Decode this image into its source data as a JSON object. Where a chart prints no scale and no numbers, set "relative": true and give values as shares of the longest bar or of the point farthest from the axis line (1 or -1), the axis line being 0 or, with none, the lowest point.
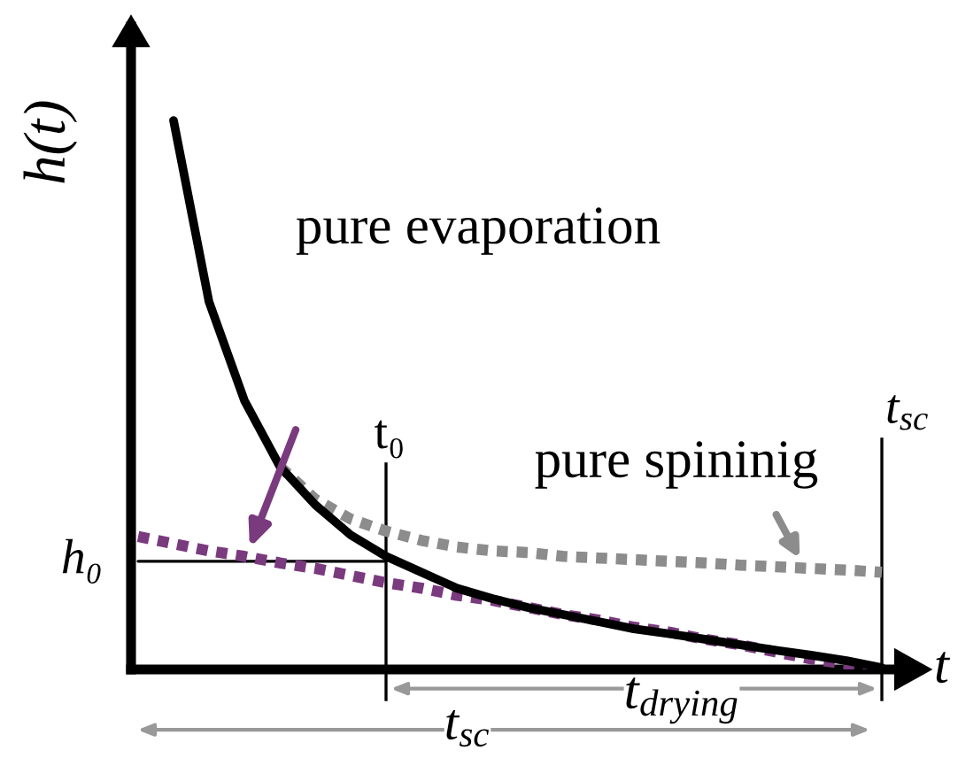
{
  "chart_data": {
    "type": "line",
    "relative": true,
    "xlabel": "t",
    "ylabel": "h(t)",
    "categories": [
      null,
      null,
      null,
      null,
      null,
      null,
      null,
      null,
      null,
      null,
      null,
      null,
      null,
      null,
      null,
      null,
      null,
      null,
      null,
      null,
      null,
      null
    ],
    "series": [
      {
        "color": "#000000",
        "line_style": "solid",
        "values": [
          null,
          1.0,
          0.67,
          0.49,
          0.37,
          0.3,
          0.245,
          0.206,
          0.177,
          0.148,
          0.129,
          0.113,
          0.1,
          0.087,
          0.074,
          0.065,
          0.055,
          0.045,
          0.035,
          0.026,
          0.016,
          0.003
        ]
      },
      {
        "color": "#8c8c8c",
        "line_style": "dotted",
        "values": [
          null,
          null,
          null,
          null,
          0.37,
          0.31,
          0.274,
          0.252,
          0.235,
          0.223,
          0.216,
          0.213,
          0.206,
          0.203,
          0.2,
          0.197,
          0.194,
          0.19,
          0.187,
          0.184,
          0.181,
          0.177
        ]
      },
      {
        "color": "#7a3a7e",
        "line_style": "dotted",
        "values": [
          0.242,
          0.229,
          0.216,
          0.206,
          0.194,
          0.184,
          0.171,
          0.158,
          0.148,
          0.135,
          0.126,
          0.113,
          0.1,
          0.09,
          0.077,
          0.068,
          0.055,
          0.045,
          0.032,
          0.019,
          0.01,
          0
        ]
      },
      {
        "name": "h₀",
        "color": "#000000",
        "line_style": "solid",
        "values": [
          0.197,
          0.197,
          0.197,
          0.197,
          0.197,
          0.197,
          0.197,
          0.197,
          null,
          null,
          null,
          null,
          null,
          null,
          null,
          null,
          null,
          null,
          null,
          null,
          null,
          null
        ]
      }
    ],
    "annotations": [
      "pure evaporation",
      "pure spininig",
      "t$_{drying}$",
      "t$_{sc}$",
      "t₀",
      "t$_{sc}$"
    ],
    "marker": "none",
    "grid": false,
    "legend": false
  }
}
